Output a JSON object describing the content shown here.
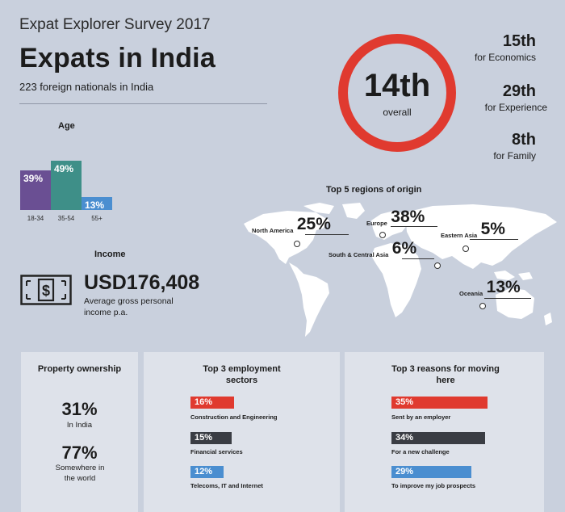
{
  "header": {
    "survey": "Expat Explorer Survey 2017",
    "title": "Expats in India",
    "subtitle": "223 foreign nationals in India"
  },
  "ranking": {
    "overall_value": "14th",
    "overall_label": "overall",
    "accent_color": "#e03a2f",
    "sub": [
      {
        "value": "15th",
        "label": "for Economics"
      },
      {
        "value": "29th",
        "label": "for Experience"
      },
      {
        "value": "8th",
        "label": "for Family"
      }
    ]
  },
  "age": {
    "title": "Age",
    "bars": [
      {
        "label": "18-34",
        "value_text": "39%",
        "value": 39,
        "color": "#6a4f93"
      },
      {
        "label": "35-54",
        "value_text": "49%",
        "value": 49,
        "color": "#3e8f88"
      },
      {
        "label": "55+",
        "value_text": "13%",
        "value": 13,
        "color": "#4a8ed0"
      }
    ]
  },
  "income": {
    "title": "Income",
    "icon": "money-icon",
    "value": "USD176,408",
    "description": "Average gross personal income p.a."
  },
  "regions": {
    "title": "Top 5 regions of origin",
    "items": [
      {
        "name": "North America",
        "pct": "25%"
      },
      {
        "name": "Europe",
        "pct": "38%"
      },
      {
        "name": "Eastern Asia",
        "pct": "5%"
      },
      {
        "name": "South & Central Asia",
        "pct": "6%"
      },
      {
        "name": "Oceania",
        "pct": "13%"
      }
    ]
  },
  "property": {
    "title": "Property ownership",
    "india_value": "31%",
    "india_label": "In India",
    "world_value": "77%",
    "world_label": "Somewhere in the world"
  },
  "sectors": {
    "title": "Top 3 employment sectors",
    "items": [
      {
        "pct": "16%",
        "value": 16,
        "label": "Construction and Engineering",
        "color": "#e03a2f"
      },
      {
        "pct": "15%",
        "value": 15,
        "label": "Financial services",
        "color": "#3a3d44"
      },
      {
        "pct": "12%",
        "value": 12,
        "label": "Telecoms, IT and Internet",
        "color": "#4a8ed0"
      }
    ]
  },
  "reasons": {
    "title": "Top 3 reasons for moving here",
    "items": [
      {
        "pct": "35%",
        "value": 35,
        "label": "Sent by an employer",
        "color": "#e03a2f"
      },
      {
        "pct": "34%",
        "value": 34,
        "label": "For a new challenge",
        "color": "#3a3d44"
      },
      {
        "pct": "29%",
        "value": 29,
        "label": "To improve my job prospects",
        "color": "#4a8ed0"
      }
    ]
  }
}
